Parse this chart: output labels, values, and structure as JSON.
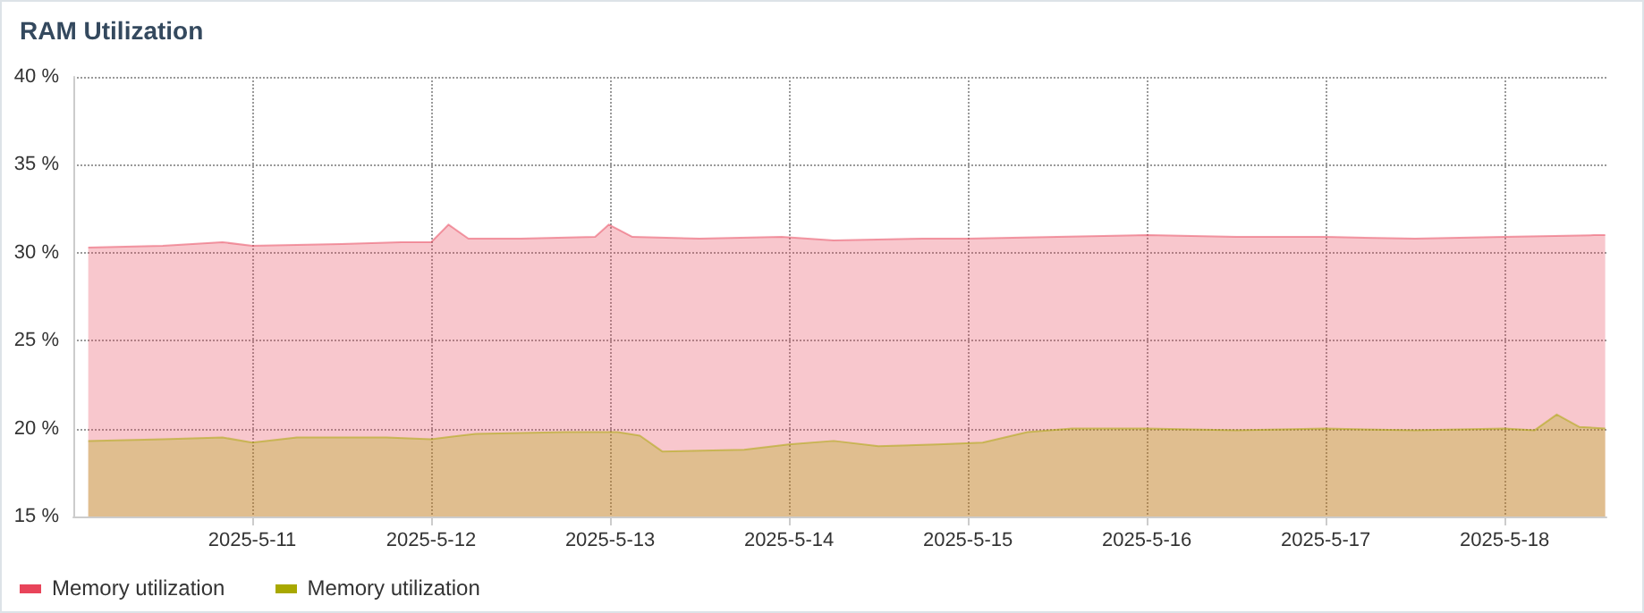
{
  "chart_data": {
    "type": "area",
    "title": "RAM Utilization",
    "xlim": [
      "2025-05-10T00:00",
      "2025-05-18T13:40"
    ],
    "xticks": [
      {
        "value": "2025-05-11",
        "label": "2025-5-11"
      },
      {
        "value": "2025-05-12",
        "label": "2025-5-12"
      },
      {
        "value": "2025-05-13",
        "label": "2025-5-13"
      },
      {
        "value": "2025-05-14",
        "label": "2025-5-14"
      },
      {
        "value": "2025-05-15",
        "label": "2025-5-15"
      },
      {
        "value": "2025-05-16",
        "label": "2025-5-16"
      },
      {
        "value": "2025-05-17",
        "label": "2025-5-17"
      },
      {
        "value": "2025-05-18",
        "label": "2025-5-18"
      }
    ],
    "ylim": [
      15,
      40
    ],
    "yticks": [
      {
        "value": 15,
        "label": "15 %"
      },
      {
        "value": 20,
        "label": "20 %"
      },
      {
        "value": 25,
        "label": "25 %"
      },
      {
        "value": 30,
        "label": "30 %"
      },
      {
        "value": 35,
        "label": "35 %"
      },
      {
        "value": 40,
        "label": "40 %"
      }
    ],
    "grid": true,
    "legend": "bottom left",
    "series": [
      {
        "name": "Memory utilization",
        "color": "#e8445a",
        "x": [
          "2025-05-10T02:00",
          "2025-05-10T12:00",
          "2025-05-10T20:00",
          "2025-05-11T00:00",
          "2025-05-11T12:00",
          "2025-05-11T20:00",
          "2025-05-12T00:00",
          "2025-05-12T02:20",
          "2025-05-12T05:00",
          "2025-05-12T12:00",
          "2025-05-12T22:00",
          "2025-05-12T23:50",
          "2025-05-13T03:00",
          "2025-05-13T12:00",
          "2025-05-13T23:00",
          "2025-05-14T06:00",
          "2025-05-14T18:00",
          "2025-05-15T00:00",
          "2025-05-15T12:00",
          "2025-05-16T00:00",
          "2025-05-16T12:00",
          "2025-05-17T00:00",
          "2025-05-17T12:00",
          "2025-05-18T00:00",
          "2025-05-18T12:00",
          "2025-05-18T13:30"
        ],
        "values": [
          30.3,
          30.4,
          30.6,
          30.4,
          30.5,
          30.6,
          30.6,
          31.6,
          30.8,
          30.8,
          30.9,
          31.6,
          30.9,
          30.8,
          30.9,
          30.7,
          30.8,
          30.8,
          30.9,
          31.0,
          30.9,
          30.9,
          30.8,
          30.9,
          31.0,
          31.0
        ]
      },
      {
        "name": "Memory utilization",
        "color": "#a8a800",
        "x": [
          "2025-05-10T02:00",
          "2025-05-10T12:00",
          "2025-05-10T20:00",
          "2025-05-11T00:00",
          "2025-05-11T06:00",
          "2025-05-11T18:00",
          "2025-05-12T00:00",
          "2025-05-12T06:00",
          "2025-05-12T18:00",
          "2025-05-13T01:00",
          "2025-05-13T04:00",
          "2025-05-13T07:00",
          "2025-05-13T18:00",
          "2025-05-14T00:00",
          "2025-05-14T06:00",
          "2025-05-14T12:00",
          "2025-05-14T20:00",
          "2025-05-15T02:00",
          "2025-05-15T08:00",
          "2025-05-15T14:00",
          "2025-05-16T00:00",
          "2025-05-16T12:00",
          "2025-05-17T00:00",
          "2025-05-17T12:00",
          "2025-05-18T00:00",
          "2025-05-18T04:00",
          "2025-05-18T07:00",
          "2025-05-18T10:00",
          "2025-05-18T13:30"
        ],
        "values": [
          19.3,
          19.4,
          19.5,
          19.2,
          19.5,
          19.5,
          19.4,
          19.7,
          19.8,
          19.8,
          19.6,
          18.7,
          18.8,
          19.1,
          19.3,
          19.0,
          19.1,
          19.2,
          19.8,
          20.0,
          20.0,
          19.9,
          20.0,
          19.9,
          20.0,
          19.9,
          20.8,
          20.1,
          20.0
        ]
      }
    ]
  }
}
